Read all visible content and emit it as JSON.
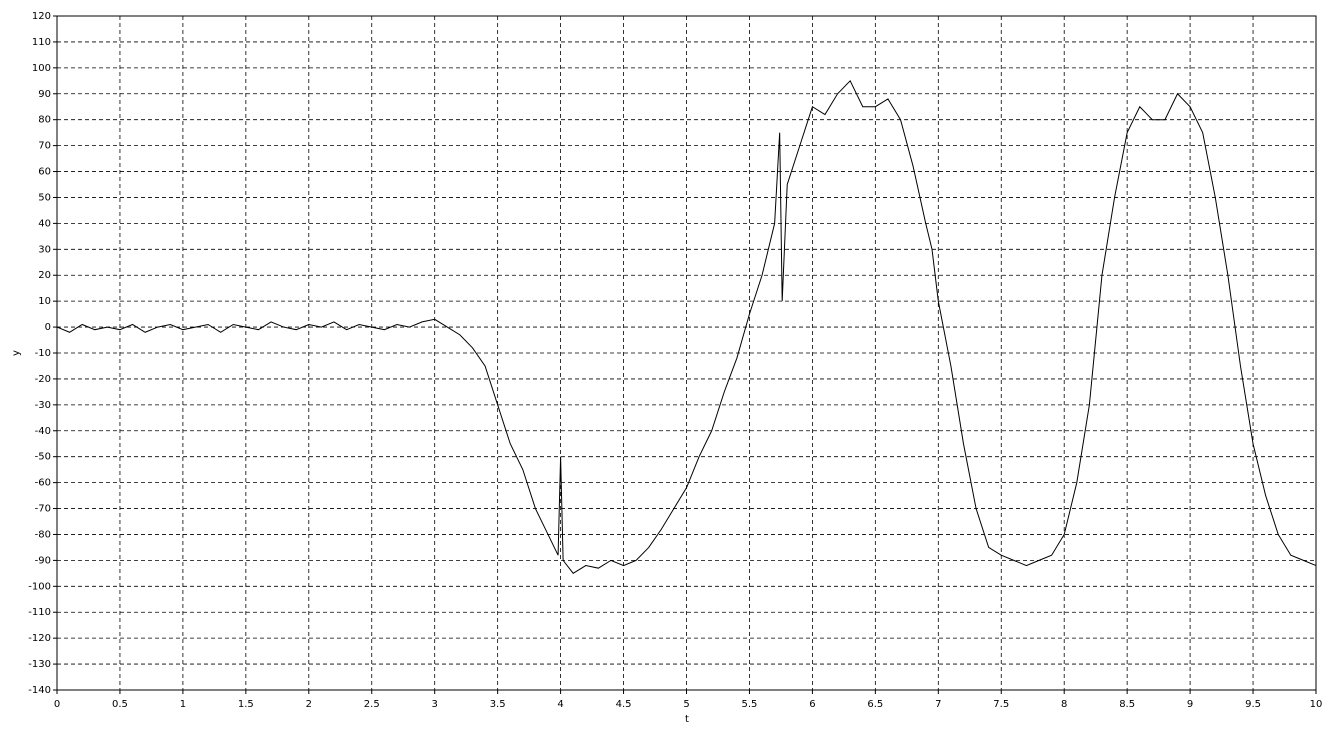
{
  "chart_data": {
    "type": "line",
    "x_label": "t",
    "y_label": "y",
    "x": [
      0,
      0.1,
      0.2,
      0.3,
      0.4,
      0.5,
      0.6,
      0.7,
      0.8,
      0.9,
      1,
      1.1,
      1.2,
      1.3,
      1.4,
      1.5,
      1.6,
      1.7,
      1.8,
      1.9,
      2,
      2.1,
      2.2,
      2.3,
      2.4,
      2.5,
      2.6,
      2.7,
      2.8,
      2.9,
      3,
      3.1,
      3.2,
      3.3,
      3.4,
      3.5,
      3.6,
      3.7,
      3.8,
      3.9,
      3.98,
      4,
      4.02,
      4.1,
      4.2,
      4.3,
      4.4,
      4.5,
      4.6,
      4.7,
      4.8,
      4.9,
      5,
      5.1,
      5.2,
      5.3,
      5.4,
      5.5,
      5.6,
      5.7,
      5.74,
      5.76,
      5.8,
      5.9,
      6,
      6.1,
      6.2,
      6.3,
      6.4,
      6.5,
      6.6,
      6.7,
      6.8,
      6.9,
      6.95,
      7,
      7.1,
      7.2,
      7.3,
      7.4,
      7.5,
      7.6,
      7.7,
      7.8,
      7.9,
      8,
      8.1,
      8.2,
      8.3,
      8.4,
      8.5,
      8.6,
      8.7,
      8.8,
      8.9,
      9,
      9.1,
      9.2,
      9.3,
      9.4,
      9.5,
      9.6,
      9.7,
      9.8,
      9.9,
      10
    ],
    "series": [
      {
        "name": "y",
        "color": "#000000",
        "values": [
          0,
          -2,
          1,
          -1,
          0,
          -1,
          1,
          -2,
          0,
          1,
          -1,
          0,
          1,
          -2,
          1,
          0,
          -1,
          2,
          0,
          -1,
          1,
          0,
          2,
          -1,
          1,
          0,
          -1,
          1,
          0,
          2,
          3,
          0,
          -3,
          -8,
          -15,
          -30,
          -45,
          -55,
          -70,
          -80,
          -88,
          -50,
          -90,
          -95,
          -92,
          -93,
          -90,
          -92,
          -90,
          -85,
          -78,
          -70,
          -62,
          -50,
          -40,
          -25,
          -12,
          5,
          20,
          40,
          75,
          10,
          55,
          70,
          85,
          82,
          90,
          95,
          85,
          85,
          88,
          80,
          62,
          40,
          30,
          10,
          -15,
          -45,
          -70,
          -85,
          -88,
          -90,
          -92,
          -90,
          -88,
          -80,
          -60,
          -30,
          20,
          50,
          75,
          85,
          80,
          80,
          90,
          85,
          75,
          50,
          20,
          -15,
          -45,
          -65,
          -80,
          -88,
          -90,
          -92
        ]
      }
    ],
    "xlim": [
      0,
      10
    ],
    "ylim": [
      -140,
      120
    ],
    "xticks": [
      0,
      0.5,
      1,
      1.5,
      2,
      2.5,
      3,
      3.5,
      4,
      4.5,
      5,
      5.5,
      6,
      6.5,
      7,
      7.5,
      8,
      8.5,
      9,
      9.5,
      10
    ],
    "yticks": [
      -140,
      -130,
      -120,
      -110,
      -100,
      -90,
      -80,
      -70,
      -60,
      -50,
      -40,
      -30,
      -20,
      -10,
      0,
      10,
      20,
      30,
      40,
      50,
      60,
      70,
      80,
      90,
      100,
      110,
      120
    ],
    "grid": true
  }
}
